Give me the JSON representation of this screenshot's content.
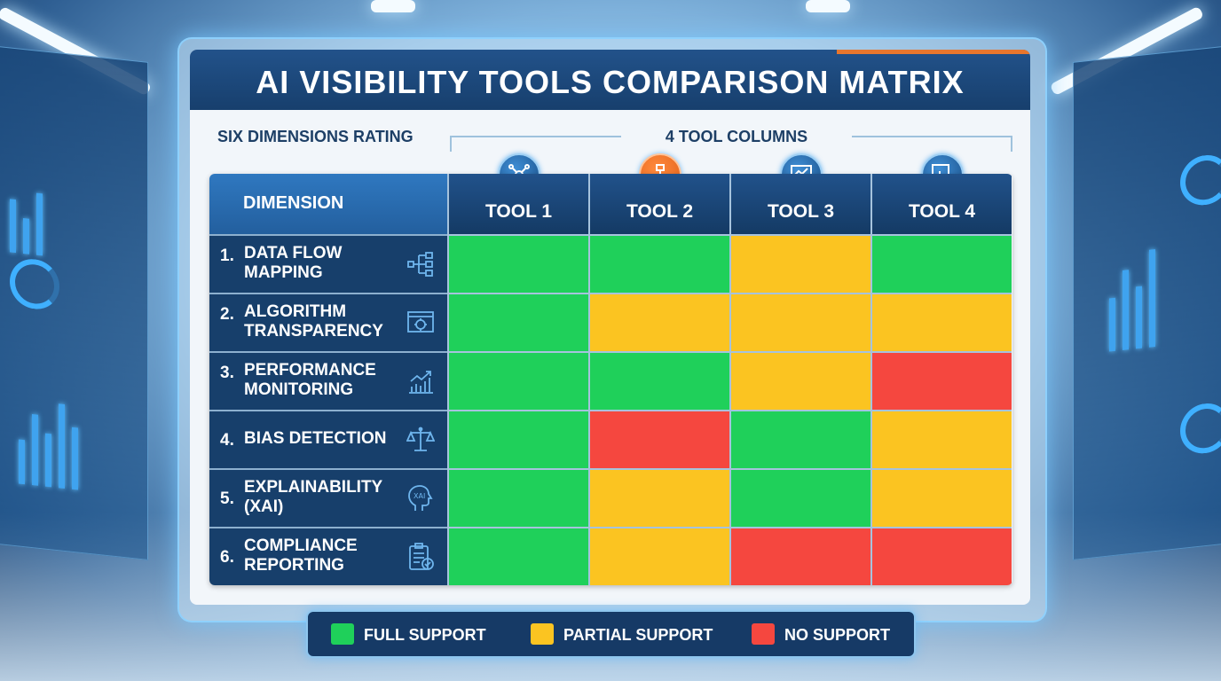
{
  "title": "AI VISIBILITY TOOLS COMPARISON MATRIX",
  "subtitle_left": "SIX DIMENSIONS RATING",
  "subtitle_right": "4 TOOL COLUMNS",
  "colors": {
    "full": "#1fd05a",
    "partial": "#fbc421",
    "none": "#f5473f"
  },
  "chart_data": {
    "type": "table",
    "column_header": "DIMENSION",
    "columns": [
      "TOOL 1",
      "TOOL 2",
      "TOOL 3",
      "TOOL 4"
    ],
    "rows": [
      {
        "num": "1.",
        "label": "DATA FLOW MAPPING",
        "line1": "DATA FLOW",
        "line2": "MAPPING",
        "icon": "data-flow-icon",
        "ratings": [
          "full",
          "full",
          "partial",
          "full"
        ]
      },
      {
        "num": "2.",
        "label": "ALGORITHM TRANSPARENCY",
        "line1": "ALGORITHM",
        "line2": "TRANSPARENCY",
        "icon": "algorithm-icon",
        "ratings": [
          "full",
          "partial",
          "partial",
          "partial"
        ]
      },
      {
        "num": "3.",
        "label": "PERFORMANCE MONITORING",
        "line1": "PERFORMANCE",
        "line2": "MONITORING",
        "icon": "performance-chart-icon",
        "ratings": [
          "full",
          "full",
          "partial",
          "none"
        ]
      },
      {
        "num": "4.",
        "label": "BIAS DETECTION",
        "line1": "BIAS DETECTION",
        "line2": "",
        "icon": "scales-icon",
        "ratings": [
          "full",
          "none",
          "full",
          "partial"
        ]
      },
      {
        "num": "5.",
        "label": "EXPLAINABILITY (XAI)",
        "line1": "EXPLAINABILITY",
        "line2": "(XAI)",
        "icon": "xai-head-icon",
        "ratings": [
          "full",
          "partial",
          "full",
          "partial"
        ]
      },
      {
        "num": "6.",
        "label": "COMPLIANCE REPORTING",
        "line1": "COMPLIANCE",
        "line2": "REPORTING",
        "icon": "clipboard-check-icon",
        "ratings": [
          "full",
          "partial",
          "none",
          "none"
        ]
      }
    ],
    "legend": [
      {
        "key": "full",
        "label": "FULL SUPPORT"
      },
      {
        "key": "partial",
        "label": "PARTIAL SUPPORT"
      },
      {
        "key": "none",
        "label": "NO SUPPORT"
      }
    ]
  }
}
